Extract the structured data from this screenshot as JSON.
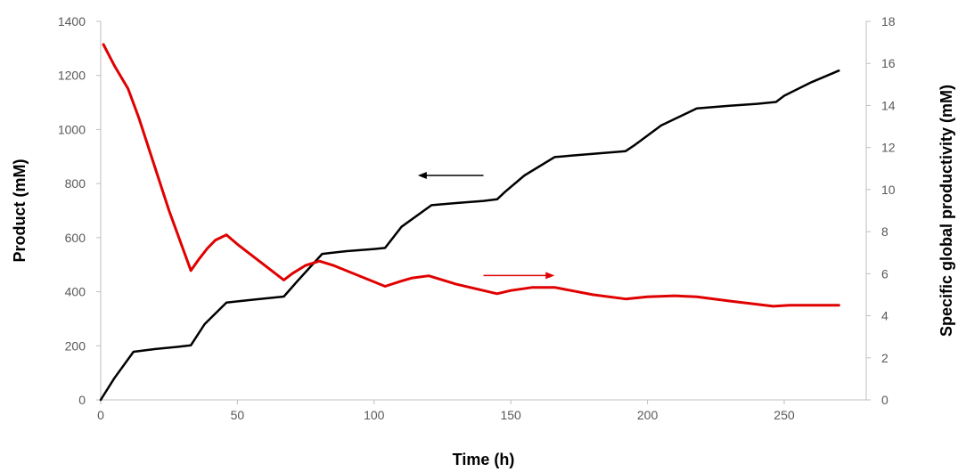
{
  "chart_data": {
    "type": "line",
    "xlabel": "Time (h)",
    "ylabel": "Product (mM)",
    "y2label": "Specific global productivity (mM)",
    "xlim": [
      0,
      280
    ],
    "ylim": [
      0,
      1400
    ],
    "y2lim": [
      0,
      18
    ],
    "xticks": [
      "0",
      "50",
      "100",
      "150",
      "200",
      "250"
    ],
    "yticks": [
      "0",
      "200",
      "400",
      "600",
      "800",
      "1000",
      "1200",
      "1400"
    ],
    "y2ticks": [
      "0",
      "2",
      "4",
      "6",
      "8",
      "10",
      "12",
      "14",
      "16",
      "18"
    ],
    "grid": false,
    "series": [
      {
        "axis": "left",
        "color": "#000000",
        "points": [
          [
            0,
            0
          ],
          [
            5,
            80
          ],
          [
            12,
            178
          ],
          [
            20,
            188
          ],
          [
            28,
            196
          ],
          [
            33,
            202
          ],
          [
            38,
            280
          ],
          [
            46,
            360
          ],
          [
            55,
            370
          ],
          [
            67,
            382
          ],
          [
            72,
            440
          ],
          [
            81,
            540
          ],
          [
            90,
            550
          ],
          [
            100,
            558
          ],
          [
            104,
            562
          ],
          [
            110,
            640
          ],
          [
            121,
            720
          ],
          [
            130,
            728
          ],
          [
            140,
            736
          ],
          [
            145,
            742
          ],
          [
            148,
            770
          ],
          [
            155,
            830
          ],
          [
            166,
            898
          ],
          [
            175,
            906
          ],
          [
            185,
            914
          ],
          [
            192,
            920
          ],
          [
            195,
            940
          ],
          [
            205,
            1015
          ],
          [
            218,
            1078
          ],
          [
            230,
            1088
          ],
          [
            240,
            1095
          ],
          [
            247,
            1102
          ],
          [
            250,
            1125
          ],
          [
            260,
            1175
          ],
          [
            270,
            1218
          ]
        ]
      },
      {
        "axis": "right",
        "color": "#e00000",
        "points": [
          [
            1,
            16.9
          ],
          [
            5,
            15.9
          ],
          [
            10,
            14.8
          ],
          [
            14,
            13.4
          ],
          [
            25,
            9.0
          ],
          [
            33,
            6.15
          ],
          [
            36,
            6.7
          ],
          [
            39,
            7.2
          ],
          [
            42,
            7.6
          ],
          [
            46,
            7.85
          ],
          [
            50,
            7.4
          ],
          [
            67,
            5.7
          ],
          [
            70,
            6.0
          ],
          [
            75,
            6.4
          ],
          [
            80,
            6.6
          ],
          [
            85,
            6.4
          ],
          [
            104,
            5.4
          ],
          [
            110,
            5.65
          ],
          [
            114,
            5.8
          ],
          [
            120,
            5.9
          ],
          [
            130,
            5.5
          ],
          [
            145,
            5.05
          ],
          [
            150,
            5.2
          ],
          [
            158,
            5.35
          ],
          [
            166,
            5.35
          ],
          [
            180,
            5.0
          ],
          [
            192,
            4.8
          ],
          [
            200,
            4.9
          ],
          [
            210,
            4.95
          ],
          [
            218,
            4.9
          ],
          [
            230,
            4.7
          ],
          [
            246,
            4.45
          ],
          [
            252,
            4.5
          ],
          [
            270,
            4.5
          ]
        ]
      }
    ],
    "annotations": [
      {
        "type": "arrow",
        "direction": "left",
        "color": "#000000",
        "from": [
          140,
          830
        ],
        "to": [
          116,
          830
        ]
      },
      {
        "type": "arrow",
        "direction": "right",
        "color": "#e00000",
        "from": [
          140,
          460
        ],
        "to": [
          166,
          460
        ]
      }
    ]
  }
}
